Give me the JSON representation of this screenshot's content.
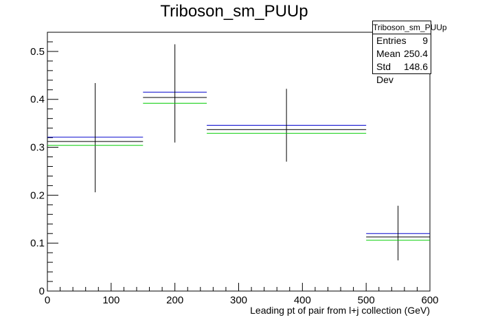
{
  "chart_data": {
    "type": "bar",
    "title": "Triboson_sm_PUUp",
    "xlabel": "Leading pt of pair from l+j collection (GeV)",
    "ylabel": "",
    "xlim": [
      0,
      600
    ],
    "ylim": [
      0,
      0.54
    ],
    "x_ticks": [
      "0",
      "100",
      "200",
      "300",
      "400",
      "500",
      "600"
    ],
    "y_ticks": [
      "0",
      "0.1",
      "0.2",
      "0.3",
      "0.4",
      "0.5"
    ],
    "grid": false,
    "bins": [
      {
        "x_low": 0,
        "x_high": 150,
        "x_center": 75
      },
      {
        "x_low": 150,
        "x_high": 250,
        "x_center": 200
      },
      {
        "x_low": 250,
        "x_high": 500,
        "x_center": 375
      },
      {
        "x_low": 500,
        "x_high": 600,
        "x_center": 550
      }
    ],
    "series": [
      {
        "color": "#0000cc",
        "values": [
          0.321,
          0.415,
          0.346,
          0.12
        ]
      },
      {
        "color": "#000000",
        "values": [
          0.312,
          0.404,
          0.337,
          0.113
        ],
        "errors_low": [
          0.206,
          0.31,
          0.27,
          0.064
        ],
        "errors_high": [
          0.434,
          0.515,
          0.422,
          0.178
        ]
      },
      {
        "color": "#00cc00",
        "values": [
          0.304,
          0.392,
          0.329,
          0.106
        ]
      }
    ]
  },
  "stats": {
    "title": "Triboson_sm_PUUp",
    "rows": [
      {
        "label": "Entries",
        "value": "9"
      },
      {
        "label": "Mean",
        "value": "250.4"
      },
      {
        "label": "Std Dev",
        "value": "148.6"
      }
    ]
  }
}
